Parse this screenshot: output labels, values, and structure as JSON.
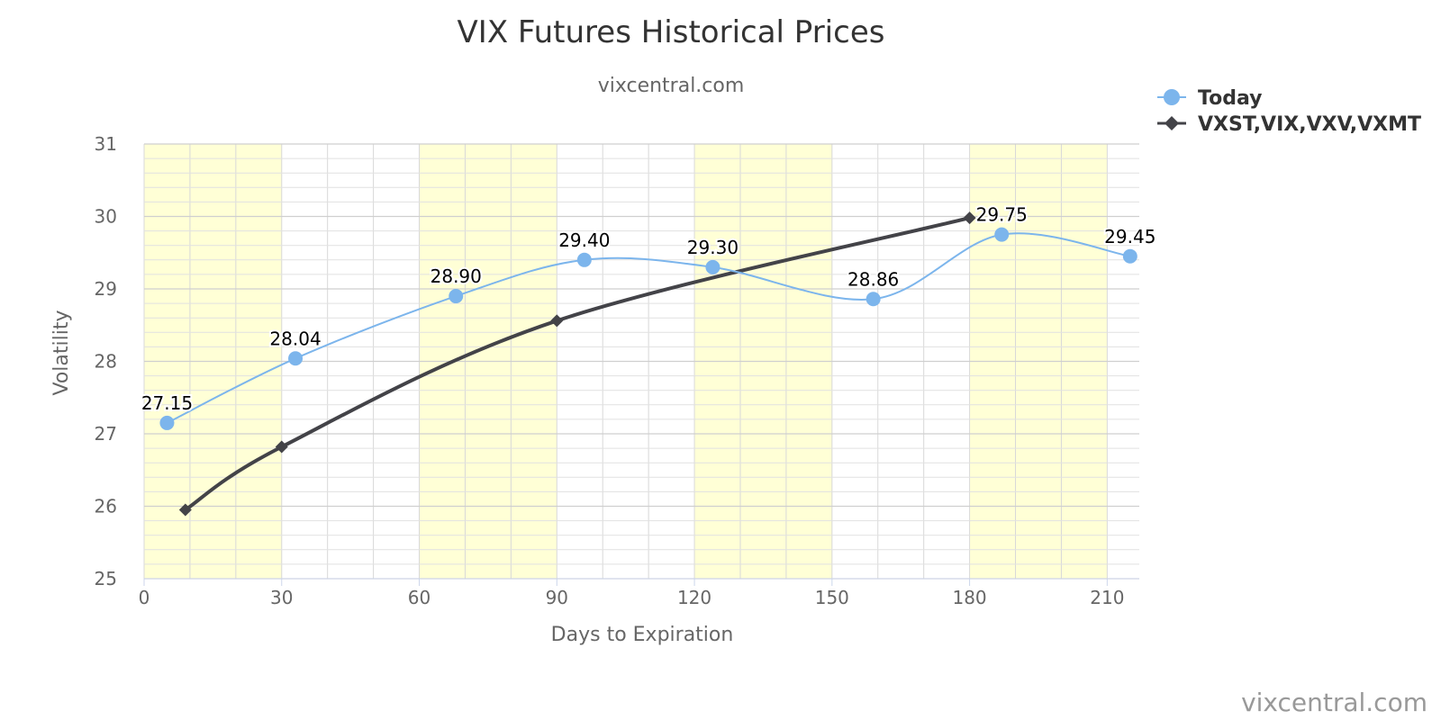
{
  "credit": "vixcentral.com",
  "colors": {
    "today": "#7cb5ec",
    "term": "#434348",
    "band": "#ffffd6",
    "grid": "#d8d8d8"
  },
  "chart_data": {
    "type": "line",
    "title": "VIX Futures Historical Prices",
    "subtitle": "vixcentral.com",
    "xlabel": "Days to Expiration",
    "ylabel": "Volatility",
    "xlim": [
      0,
      217
    ],
    "ylim": [
      25,
      31
    ],
    "x_ticks": [
      0,
      30,
      60,
      90,
      120,
      150,
      180,
      210
    ],
    "y_ticks": [
      25,
      26,
      27,
      28,
      29,
      30,
      31
    ],
    "bands": [
      [
        0,
        30
      ],
      [
        60,
        90
      ],
      [
        120,
        150
      ],
      [
        180,
        210
      ]
    ],
    "grid": true,
    "legend_position": "top-right",
    "series": [
      {
        "name": "Today",
        "marker": "circle",
        "x": [
          5,
          33,
          68,
          96,
          124,
          159,
          187,
          215
        ],
        "y": [
          27.15,
          28.04,
          28.9,
          29.4,
          29.3,
          28.86,
          29.75,
          29.45
        ],
        "labels": [
          "27.15",
          "28.04",
          "28.90",
          "29.40",
          "29.30",
          "28.86",
          "29.75",
          "29.45"
        ]
      },
      {
        "name": "VXST,VIX,VXV,VXMT",
        "marker": "diamond",
        "x": [
          9,
          30,
          90,
          180
        ],
        "y": [
          25.95,
          26.82,
          28.56,
          29.98
        ],
        "labels": []
      }
    ]
  }
}
